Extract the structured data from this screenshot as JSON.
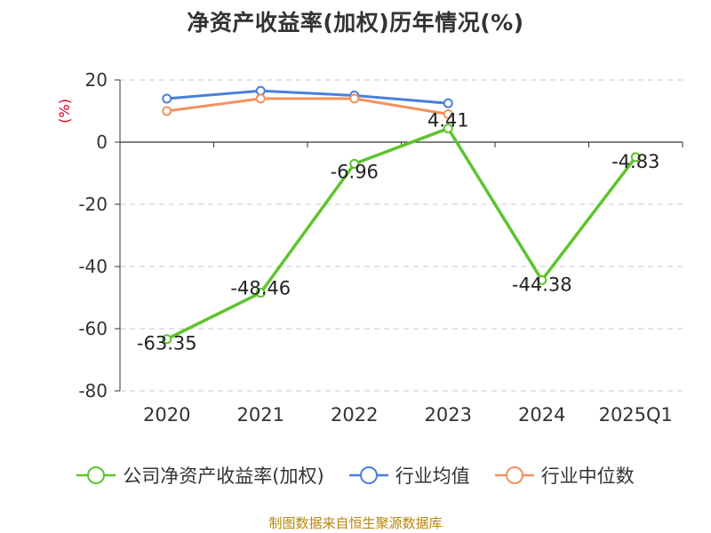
{
  "chart_data": {
    "type": "line",
    "title": "净资产收益率(加权)历年情况(%)",
    "ylabel": "(%)",
    "categories": [
      "2020",
      "2021",
      "2022",
      "2023",
      "2024",
      "2025Q1"
    ],
    "ylim": [
      -80,
      20
    ],
    "yticks": [
      20,
      0,
      -20,
      -40,
      -60,
      -80
    ],
    "grid": true,
    "legend_position": "bottom",
    "series": [
      {
        "name": "公司净资产收益率(加权)",
        "color": "#5ec42e",
        "values": [
          -63.35,
          -48.46,
          -6.96,
          4.41,
          -44.38,
          -4.83
        ],
        "labels": [
          "-63.35",
          "-48.46",
          "-6.96",
          "4.41",
          "-44.38",
          "-4.83"
        ]
      },
      {
        "name": "行业均值",
        "color": "#4a7fdc",
        "values": [
          14,
          16.5,
          15,
          12.5,
          null,
          null
        ]
      },
      {
        "name": "行业中位数",
        "color": "#f4915e",
        "values": [
          10,
          14,
          14,
          9,
          null,
          null
        ]
      }
    ],
    "ylabel_color": "#d0021b"
  },
  "source": "制图数据来自恒生聚源数据库"
}
